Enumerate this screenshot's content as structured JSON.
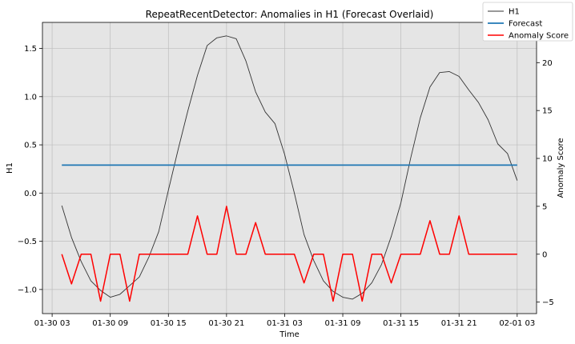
{
  "chart_data": {
    "type": "line",
    "title": "RepeatRecentDetector: Anomalies in H1 (Forecast Overlaid)",
    "xlabel": "Time",
    "ylabel": "H1",
    "y2label": "Anomaly Score",
    "x_ticks": [
      "01-30 03",
      "01-30 09",
      "01-30 15",
      "01-30 21",
      "01-31 03",
      "01-31 09",
      "01-31 15",
      "01-31 21",
      "02-01 03"
    ],
    "x_tick_hours": [
      3,
      9,
      15,
      21,
      27,
      33,
      39,
      45,
      51
    ],
    "xlim_hours": [
      2,
      53
    ],
    "ylim": [
      -1.25,
      1.77
    ],
    "y_ticks": [
      -1.0,
      -0.5,
      0.0,
      0.5,
      1.0,
      1.5
    ],
    "y_tick_labels": [
      "−1.0",
      "−0.5",
      "0.0",
      "0.5",
      "1.0",
      "1.5"
    ],
    "y2lim": [
      -6.2,
      24.2
    ],
    "y2_ticks": [
      -5,
      0,
      5,
      10,
      15,
      20
    ],
    "y2_tick_labels": [
      "−5",
      "0",
      "5",
      "10",
      "15",
      "20"
    ],
    "grid": true,
    "legend_position": "top-right",
    "series": [
      {
        "name": "H1",
        "color": "#333333",
        "axis": "left",
        "x_hours": [
          4,
          5,
          6,
          7,
          8,
          9,
          10,
          11,
          12,
          13,
          14,
          15,
          16,
          17,
          18,
          19,
          20,
          21,
          22,
          23,
          24,
          25,
          26,
          27,
          28,
          29,
          30,
          31,
          32,
          33,
          34,
          35,
          36,
          37,
          38,
          39,
          40,
          41,
          42,
          43,
          44,
          45,
          46,
          47,
          48,
          49,
          50,
          51
        ],
        "values": [
          -0.13,
          -0.46,
          -0.71,
          -0.91,
          -1.01,
          -1.08,
          -1.05,
          -0.96,
          -0.87,
          -0.66,
          -0.4,
          0.03,
          0.45,
          0.85,
          1.22,
          1.53,
          1.61,
          1.63,
          1.6,
          1.37,
          1.05,
          0.84,
          0.72,
          0.4,
          0.0,
          -0.43,
          -0.7,
          -0.91,
          -1.02,
          -1.08,
          -1.1,
          -1.04,
          -0.93,
          -0.74,
          -0.45,
          -0.1,
          0.36,
          0.78,
          1.1,
          1.25,
          1.26,
          1.21,
          1.07,
          0.94,
          0.76,
          0.51,
          0.41,
          0.13
        ]
      },
      {
        "name": "Forecast",
        "color": "#1f77b4",
        "axis": "left",
        "x_hours": [
          4,
          51
        ],
        "values": [
          0.29,
          0.29
        ]
      },
      {
        "name": "Anomaly Score",
        "color": "#ff0000",
        "axis": "right",
        "x_hours": [
          4,
          5,
          6,
          7,
          8,
          9,
          10,
          11,
          12,
          13,
          14,
          15,
          16,
          17,
          18,
          19,
          20,
          21,
          22,
          23,
          24,
          25,
          26,
          27,
          28,
          29,
          30,
          31,
          32,
          33,
          34,
          35,
          36,
          37,
          38,
          39,
          40,
          41,
          42,
          43,
          44,
          45,
          46,
          47,
          48,
          49,
          50,
          51
        ],
        "values": [
          0,
          -3.1,
          0,
          0,
          -4.9,
          0,
          0,
          -4.9,
          0,
          0,
          0,
          0,
          0,
          0,
          4.0,
          0,
          0,
          5.0,
          0,
          0,
          3.3,
          0,
          0,
          0,
          0,
          -3.0,
          0,
          0,
          -4.9,
          0,
          0,
          -4.9,
          0,
          0,
          -3.0,
          0,
          0,
          0,
          3.5,
          0,
          0,
          4.0,
          0,
          0,
          0,
          0,
          0,
          0
        ]
      }
    ]
  }
}
